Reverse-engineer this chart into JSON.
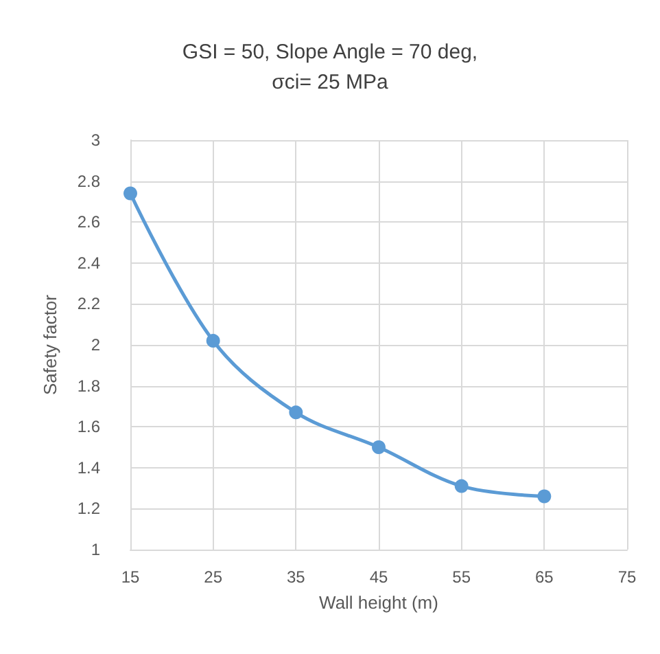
{
  "chart_data": {
    "type": "line",
    "title": "GSI = 50, Slope Angle = 70 deg,\nσci= 25 MPa",
    "xlabel": "Wall height (m)",
    "ylabel": "Safety factor",
    "x": [
      15,
      25,
      35,
      45,
      55,
      65
    ],
    "series": [
      {
        "color": "#5b9bd5",
        "values": [
          2.74,
          2.02,
          1.67,
          1.5,
          1.31,
          1.26
        ]
      }
    ],
    "xlim": [
      15,
      75
    ],
    "xticks": [
      15,
      25,
      35,
      45,
      55,
      65,
      75
    ],
    "ylim": [
      1,
      3
    ],
    "yticks": [
      1,
      1.2,
      1.4,
      1.6,
      1.8,
      2,
      2.2,
      2.4,
      2.6,
      2.8,
      3
    ],
    "grid": true,
    "marker": "circle",
    "line_style": "solid"
  }
}
